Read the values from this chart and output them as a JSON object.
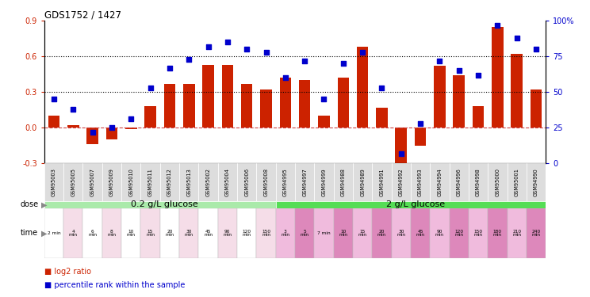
{
  "title": "GDS1752 / 1427",
  "samples": [
    "GSM95003",
    "GSM95005",
    "GSM95007",
    "GSM95009",
    "GSM95010",
    "GSM95011",
    "GSM95012",
    "GSM95013",
    "GSM95002",
    "GSM95004",
    "GSM95006",
    "GSM95008",
    "GSM94995",
    "GSM94997",
    "GSM94999",
    "GSM94988",
    "GSM94989",
    "GSM94991",
    "GSM94992",
    "GSM94993",
    "GSM94994",
    "GSM94996",
    "GSM94998",
    "GSM95000",
    "GSM95001",
    "GSM94990"
  ],
  "log2_ratio": [
    0.1,
    0.02,
    -0.14,
    -0.1,
    -0.01,
    0.18,
    0.37,
    0.37,
    0.53,
    0.53,
    0.37,
    0.32,
    0.42,
    0.4,
    0.1,
    0.42,
    0.68,
    0.17,
    -0.3,
    -0.15,
    0.52,
    0.44,
    0.18,
    0.85,
    0.62,
    0.32
  ],
  "percentile": [
    45,
    38,
    22,
    25,
    31,
    53,
    67,
    73,
    82,
    85,
    80,
    78,
    60,
    72,
    45,
    70,
    78,
    53,
    7,
    28,
    72,
    65,
    62,
    97,
    88,
    80
  ],
  "time_labels_0_2": [
    "2 min",
    "4\nmin",
    "6\nmin",
    "8\nmin",
    "10\nmin",
    "15\nmin",
    "20\nmin",
    "30\nmin",
    "45\nmin",
    "90\nmin",
    "120\nmin",
    "150\nmin"
  ],
  "time_labels_2": [
    "3\nmin",
    "5\nmin",
    "7 min",
    "10\nmin",
    "15\nmin",
    "20\nmin",
    "30\nmin",
    "45\nmin",
    "90\nmin",
    "120\nmin",
    "150\nmin",
    "180\nmin",
    "210\nmin",
    "240\nmin"
  ],
  "dose_label_02": "0.2 g/L glucose",
  "dose_label_2": "2 g/L glucose",
  "dose_color_02": "#aaeaaa",
  "dose_color_2": "#55dd55",
  "time_color_02_light": "#f5dde8",
  "time_color_02_white": "#ffffff",
  "time_color_2_dark": "#dd88bb",
  "time_color_2_light": "#f0bbdd",
  "bar_color": "#cc2200",
  "dot_color": "#0000cc",
  "ref_line_color": "#cc4444",
  "ylim_left": [
    -0.3,
    0.9
  ],
  "ylim_right": [
    0,
    100
  ],
  "yticks_left": [
    -0.3,
    0.0,
    0.3,
    0.6,
    0.9
  ],
  "yticks_right": [
    0,
    25,
    50,
    75,
    100
  ],
  "hlines": [
    0.3,
    0.6
  ],
  "split_index": 12,
  "n_02": 12,
  "n_2g": 14
}
